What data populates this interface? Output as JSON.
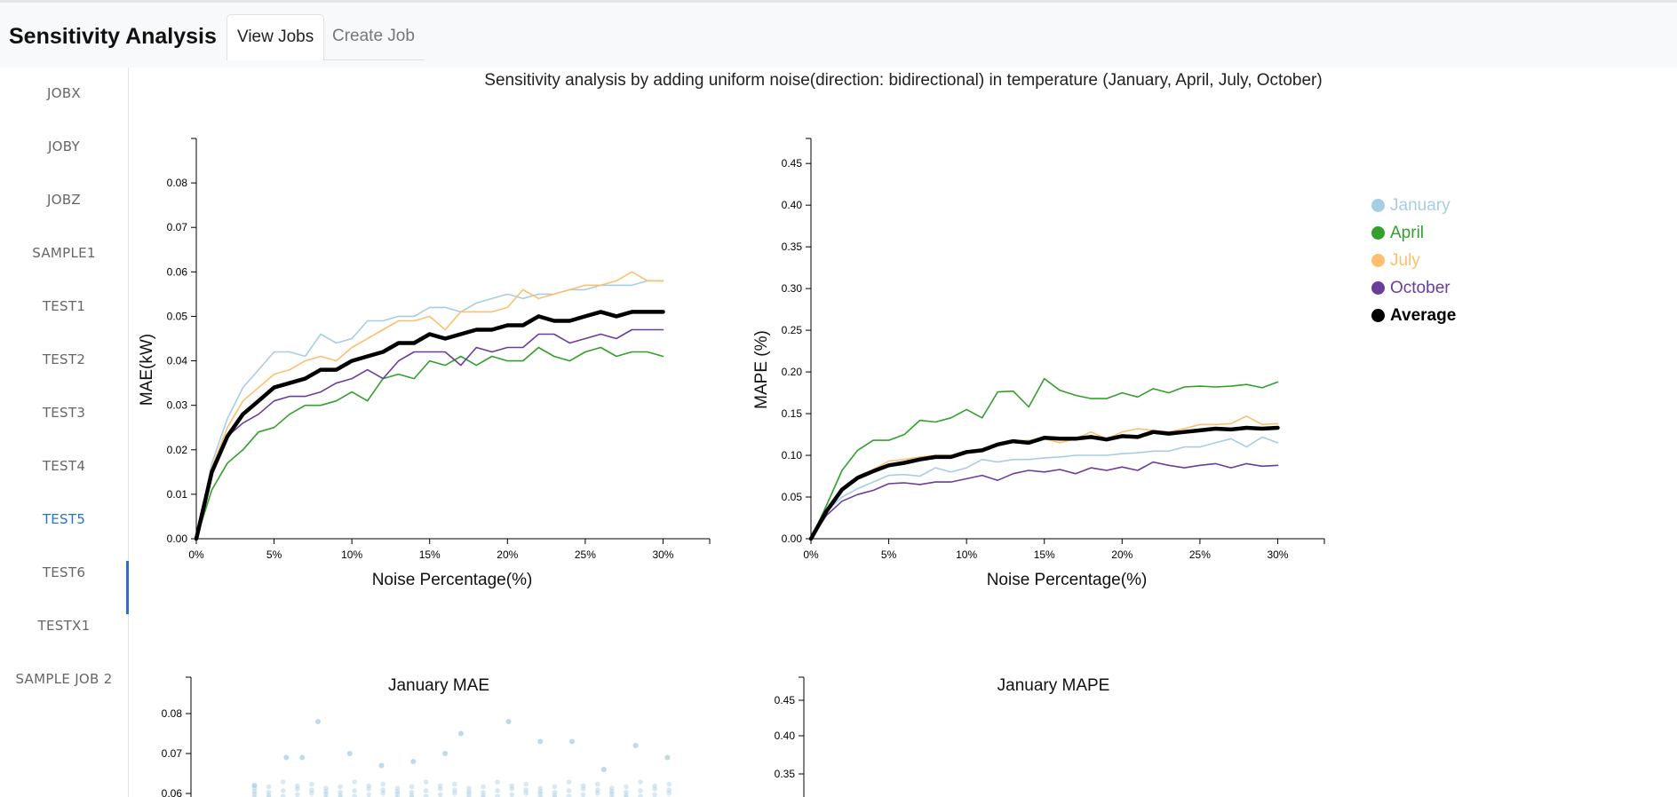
{
  "app": {
    "title": "Sensitivity Analysis",
    "tabs": [
      {
        "label": "View Jobs",
        "active": true
      },
      {
        "label": "Create Job",
        "active": false
      }
    ]
  },
  "sidebar": {
    "active_index": 8,
    "active_color": "#2a72c8",
    "items": [
      "JOBX",
      "JOBY",
      "JOBZ",
      "SAMPLE1",
      "TEST1",
      "TEST2",
      "TEST3",
      "TEST4",
      "TEST5",
      "TEST6",
      "TESTX1",
      "SAMPLE JOB 2"
    ]
  },
  "main": {
    "title": "Sensitivity analysis by adding uniform noise(direction: bidirectional) in temperature (January, April, July, October)"
  },
  "legend": [
    {
      "name": "January",
      "color": "#a6cee3"
    },
    {
      "name": "April",
      "color": "#33a02c"
    },
    {
      "name": "July",
      "color": "#fdbf6f"
    },
    {
      "name": "October",
      "color": "#6a3d9a"
    },
    {
      "name": "Average",
      "color": "#000000"
    }
  ],
  "chart_data": [
    {
      "type": "line",
      "title": "",
      "xlabel": "Noise Percentage(%)",
      "ylabel": "MAE(kW)",
      "x": [
        0,
        1,
        2,
        3,
        4,
        5,
        6,
        7,
        8,
        9,
        10,
        11,
        12,
        13,
        14,
        15,
        16,
        17,
        18,
        19,
        20,
        21,
        22,
        23,
        24,
        25,
        26,
        27,
        28,
        29,
        30
      ],
      "x_ticks": [
        "0%",
        "5%",
        "10%",
        "15%",
        "20%",
        "25%",
        "30%"
      ],
      "y_ticks": [
        "0.00",
        "0.01",
        "0.02",
        "0.03",
        "0.04",
        "0.05",
        "0.06",
        "0.07",
        "0.08"
      ],
      "xlim": [
        0,
        33
      ],
      "ylim": [
        0,
        0.09
      ],
      "grid": false,
      "series": [
        {
          "name": "January",
          "color": "#a6cee3",
          "width": 1.6,
          "values": [
            0,
            0.017,
            0.027,
            0.034,
            0.038,
            0.042,
            0.042,
            0.041,
            0.046,
            0.044,
            0.045,
            0.049,
            0.049,
            0.05,
            0.05,
            0.052,
            0.052,
            0.051,
            0.053,
            0.054,
            0.055,
            0.054,
            0.055,
            0.055,
            0.056,
            0.056,
            0.057,
            0.057,
            0.057,
            0.058,
            0.058
          ]
        },
        {
          "name": "April",
          "color": "#33a02c",
          "width": 1.6,
          "values": [
            0,
            0.011,
            0.017,
            0.02,
            0.024,
            0.025,
            0.028,
            0.03,
            0.03,
            0.031,
            0.033,
            0.031,
            0.036,
            0.037,
            0.036,
            0.04,
            0.039,
            0.041,
            0.039,
            0.041,
            0.04,
            0.04,
            0.043,
            0.041,
            0.04,
            0.042,
            0.043,
            0.041,
            0.042,
            0.042,
            0.041
          ]
        },
        {
          "name": "July",
          "color": "#fdbf6f",
          "width": 1.6,
          "values": [
            0,
            0.016,
            0.025,
            0.031,
            0.034,
            0.037,
            0.038,
            0.04,
            0.041,
            0.04,
            0.043,
            0.045,
            0.047,
            0.049,
            0.049,
            0.05,
            0.047,
            0.051,
            0.051,
            0.051,
            0.052,
            0.056,
            0.054,
            0.055,
            0.056,
            0.057,
            0.057,
            0.058,
            0.06,
            0.058,
            0.058
          ]
        },
        {
          "name": "October",
          "color": "#6a3d9a",
          "width": 1.6,
          "values": [
            0,
            0.015,
            0.023,
            0.026,
            0.028,
            0.031,
            0.032,
            0.032,
            0.033,
            0.035,
            0.036,
            0.038,
            0.036,
            0.04,
            0.042,
            0.042,
            0.042,
            0.039,
            0.043,
            0.042,
            0.043,
            0.043,
            0.046,
            0.046,
            0.044,
            0.045,
            0.046,
            0.045,
            0.047,
            0.047,
            0.047
          ]
        },
        {
          "name": "Average",
          "color": "#000000",
          "width": 4.5,
          "values": [
            0,
            0.015,
            0.023,
            0.028,
            0.031,
            0.034,
            0.035,
            0.036,
            0.038,
            0.038,
            0.04,
            0.041,
            0.042,
            0.044,
            0.044,
            0.046,
            0.045,
            0.046,
            0.047,
            0.047,
            0.048,
            0.048,
            0.05,
            0.049,
            0.049,
            0.05,
            0.051,
            0.05,
            0.051,
            0.051,
            0.051
          ]
        }
      ]
    },
    {
      "type": "line",
      "title": "",
      "xlabel": "Noise Percentage(%)",
      "ylabel": "MAPE (%)",
      "x": [
        0,
        1,
        2,
        3,
        4,
        5,
        6,
        7,
        8,
        9,
        10,
        11,
        12,
        13,
        14,
        15,
        16,
        17,
        18,
        19,
        20,
        21,
        22,
        23,
        24,
        25,
        26,
        27,
        28,
        29,
        30
      ],
      "x_ticks": [
        "0%",
        "5%",
        "10%",
        "15%",
        "20%",
        "25%",
        "30%"
      ],
      "y_ticks": [
        "0.00",
        "0.05",
        "0.10",
        "0.15",
        "0.20",
        "0.25",
        "0.30",
        "0.35",
        "0.40",
        "0.45"
      ],
      "xlim": [
        0,
        33
      ],
      "ylim": [
        0,
        0.48
      ],
      "grid": false,
      "series": [
        {
          "name": "January",
          "color": "#a6cee3",
          "width": 1.6,
          "values": [
            0,
            0.033,
            0.05,
            0.06,
            0.068,
            0.076,
            0.077,
            0.075,
            0.085,
            0.08,
            0.085,
            0.095,
            0.092,
            0.095,
            0.095,
            0.097,
            0.098,
            0.1,
            0.1,
            0.1,
            0.102,
            0.103,
            0.105,
            0.105,
            0.11,
            0.11,
            0.115,
            0.12,
            0.11,
            0.122,
            0.115
          ]
        },
        {
          "name": "April",
          "color": "#33a02c",
          "width": 1.6,
          "values": [
            0,
            0.04,
            0.082,
            0.106,
            0.118,
            0.118,
            0.125,
            0.142,
            0.14,
            0.145,
            0.155,
            0.145,
            0.176,
            0.177,
            0.158,
            0.192,
            0.178,
            0.172,
            0.168,
            0.168,
            0.175,
            0.17,
            0.18,
            0.175,
            0.182,
            0.183,
            0.182,
            0.183,
            0.185,
            0.181,
            0.188
          ]
        },
        {
          "name": "July",
          "color": "#fdbf6f",
          "width": 1.6,
          "values": [
            0,
            0.032,
            0.06,
            0.075,
            0.083,
            0.093,
            0.095,
            0.098,
            0.1,
            0.1,
            0.103,
            0.107,
            0.113,
            0.117,
            0.118,
            0.12,
            0.115,
            0.12,
            0.128,
            0.12,
            0.128,
            0.132,
            0.13,
            0.128,
            0.132,
            0.137,
            0.137,
            0.138,
            0.147,
            0.137,
            0.138
          ]
        },
        {
          "name": "October",
          "color": "#6a3d9a",
          "width": 1.6,
          "values": [
            0,
            0.028,
            0.045,
            0.053,
            0.058,
            0.066,
            0.067,
            0.065,
            0.068,
            0.068,
            0.072,
            0.076,
            0.07,
            0.078,
            0.082,
            0.08,
            0.083,
            0.078,
            0.085,
            0.082,
            0.086,
            0.082,
            0.092,
            0.088,
            0.085,
            0.088,
            0.09,
            0.085,
            0.09,
            0.087,
            0.088
          ]
        },
        {
          "name": "Average",
          "color": "#000000",
          "width": 4.5,
          "values": [
            0,
            0.033,
            0.059,
            0.073,
            0.081,
            0.088,
            0.091,
            0.095,
            0.098,
            0.098,
            0.104,
            0.106,
            0.113,
            0.117,
            0.115,
            0.121,
            0.12,
            0.12,
            0.122,
            0.119,
            0.123,
            0.122,
            0.128,
            0.126,
            0.128,
            0.13,
            0.132,
            0.131,
            0.133,
            0.132,
            0.133
          ]
        }
      ]
    },
    {
      "type": "scatter",
      "title": "January MAE",
      "color": "#a6cee3",
      "y_ticks": [
        "0.08",
        "0.07",
        "0.06"
      ],
      "visible_points": [
        {
          "x": 0.08,
          "y": 0.078
        },
        {
          "x": 0.17,
          "y": 0.075
        },
        {
          "x": 0.2,
          "y": 0.078
        },
        {
          "x": 0.06,
          "y": 0.069
        },
        {
          "x": 0.07,
          "y": 0.069
        },
        {
          "x": 0.1,
          "y": 0.07
        },
        {
          "x": 0.14,
          "y": 0.068
        },
        {
          "x": 0.16,
          "y": 0.07
        },
        {
          "x": 0.22,
          "y": 0.073
        },
        {
          "x": 0.24,
          "y": 0.073
        },
        {
          "x": 0.28,
          "y": 0.072
        },
        {
          "x": 0.3,
          "y": 0.069
        },
        {
          "x": 0.04,
          "y": 0.062
        },
        {
          "x": 0.12,
          "y": 0.067
        },
        {
          "x": 0.26,
          "y": 0.066
        }
      ]
    },
    {
      "type": "scatter",
      "title": "January MAPE",
      "color": "#a6cee3",
      "y_ticks": [
        "0.45",
        "0.40",
        "0.35"
      ],
      "visible_points": []
    }
  ]
}
